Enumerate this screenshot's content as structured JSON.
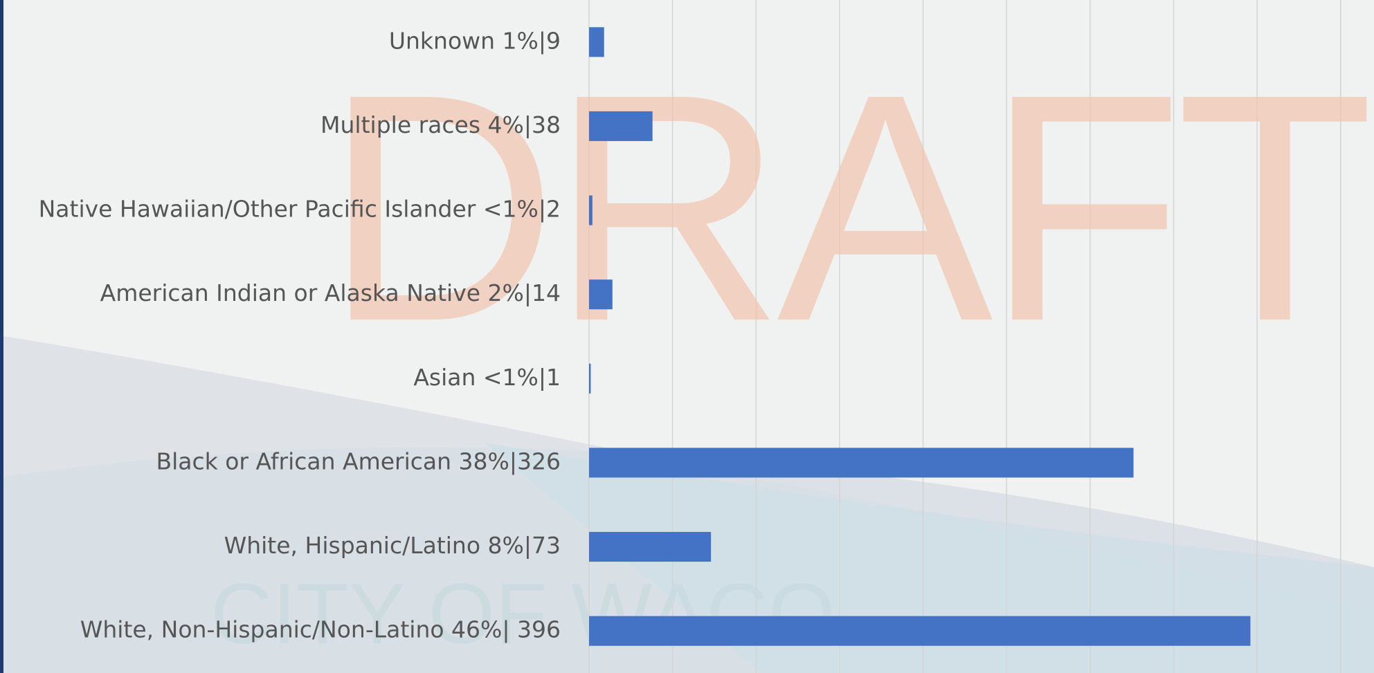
{
  "chart_data": {
    "type": "bar",
    "orientation": "horizontal",
    "categories": [
      "Unknown 1%|9",
      "Multiple races 4%|38",
      "Native Hawaiian/Other Pacific Islander <1%|2",
      "American Indian or Alaska Native 2%|14",
      "Asian <1%|1",
      "Black or African American 38%|326",
      "White, Hispanic/Latino 8%|73",
      "White, Non-Hispanic/Non-Latino 46%| 396"
    ],
    "values": [
      9,
      38,
      2,
      14,
      1,
      326,
      73,
      396
    ],
    "color": "#4472c4",
    "xlim": [
      0,
      470
    ],
    "xticks": [
      0,
      50,
      100,
      150,
      200,
      250,
      300,
      350,
      400,
      450
    ],
    "grid": true,
    "watermarks": [
      "DRAFT",
      "CITY OF WACO"
    ]
  }
}
